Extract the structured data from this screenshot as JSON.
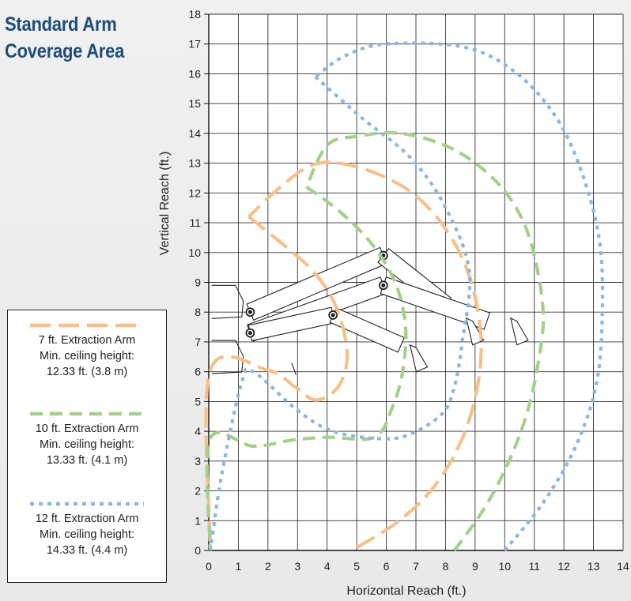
{
  "title_line1": "Standard Arm",
  "title_line2": "Coverage Area",
  "legend": [
    {
      "name": "7 ft. Extraction Arm",
      "line2": "Min. ceiling height:",
      "line3": "12.33 ft. (3.8 m)",
      "color": "#f7c08a",
      "dash": "26 10"
    },
    {
      "name": "10 ft. Extraction Arm",
      "line2": "Min. ceiling height:",
      "line3": "13.33 ft. (4.1 m)",
      "color": "#a5d08c",
      "dash": "16 9"
    },
    {
      "name": "12 ft. Extraction Arm",
      "line2": "Min. ceiling height:",
      "line3": "14.33 ft. (4.4 m)",
      "color": "#8eb7dd",
      "dash": "5 6"
    }
  ],
  "chart_data": {
    "type": "line",
    "xlabel": "Horizontal Reach (ft.)",
    "ylabel": "Vertical Reach (ft.)",
    "xlim": [
      0,
      14
    ],
    "ylim": [
      0,
      18
    ],
    "xticks": [
      0,
      1,
      2,
      3,
      4,
      5,
      6,
      7,
      8,
      9,
      10,
      11,
      12,
      13,
      14
    ],
    "yticks": [
      0,
      1,
      2,
      3,
      4,
      5,
      6,
      7,
      8,
      9,
      10,
      11,
      12,
      13,
      14,
      15,
      16,
      17,
      18
    ],
    "grid": true,
    "series": [
      {
        "name": "7 ft. Extraction Arm",
        "color": "#f7c08a",
        "segments": [
          [
            [
              5.0,
              0.1
            ],
            [
              6.3,
              0.9
            ],
            [
              7.5,
              2.0
            ],
            [
              8.4,
              3.4
            ],
            [
              8.95,
              4.9
            ],
            [
              9.2,
              6.5
            ],
            [
              9.1,
              8.0
            ],
            [
              8.7,
              9.5
            ],
            [
              8.0,
              10.8
            ],
            [
              7.0,
              11.9
            ],
            [
              5.8,
              12.6
            ],
            [
              4.4,
              13.0
            ],
            [
              3.4,
              12.9
            ],
            [
              2.3,
              12.1
            ],
            [
              1.35,
              11.2
            ]
          ],
          [
            [
              1.35,
              11.2
            ],
            [
              2.6,
              10.2
            ],
            [
              3.5,
              9.4
            ],
            [
              4.2,
              8.4
            ],
            [
              4.6,
              7.2
            ],
            [
              4.65,
              6.2
            ],
            [
              4.3,
              5.4
            ],
            [
              3.6,
              5.05
            ],
            [
              2.9,
              5.5
            ],
            [
              2.0,
              6.05
            ],
            [
              0.05,
              6.05
            ],
            [
              0.05,
              0.1
            ]
          ]
        ]
      },
      {
        "name": "10 ft. Extraction Arm",
        "color": "#a5d08c",
        "segments": [
          [
            [
              8.3,
              0.0
            ],
            [
              9.3,
              1.4
            ],
            [
              10.1,
              2.9
            ],
            [
              10.75,
              4.6
            ],
            [
              11.15,
              6.4
            ],
            [
              11.3,
              8.0
            ],
            [
              11.0,
              9.9
            ],
            [
              10.5,
              11.3
            ],
            [
              9.6,
              12.5
            ],
            [
              8.2,
              13.5
            ],
            [
              6.5,
              14.0
            ],
            [
              5.0,
              13.9
            ],
            [
              4.0,
              13.6
            ],
            [
              3.3,
              12.2
            ]
          ],
          [
            [
              3.3,
              12.2
            ],
            [
              4.4,
              11.4
            ],
            [
              5.5,
              10.3
            ],
            [
              6.3,
              9.0
            ],
            [
              6.65,
              7.5
            ],
            [
              6.55,
              6.0
            ],
            [
              6.2,
              4.8
            ],
            [
              5.6,
              3.8
            ],
            [
              4.0,
              3.8
            ],
            [
              2.8,
              3.7
            ],
            [
              1.5,
              3.5
            ],
            [
              0.05,
              3.75
            ],
            [
              0.05,
              0.0
            ]
          ]
        ]
      },
      {
        "name": "12 ft. Extraction Arm",
        "color": "#8eb7dd",
        "segments": [
          [
            [
              10.0,
              0.0
            ],
            [
              11.3,
              1.6
            ],
            [
              12.4,
              3.5
            ],
            [
              13.1,
              5.6
            ],
            [
              13.3,
              8.0
            ],
            [
              13.2,
              10.4
            ],
            [
              12.6,
              12.7
            ],
            [
              11.7,
              14.6
            ],
            [
              10.3,
              16.1
            ],
            [
              8.6,
              16.9
            ],
            [
              6.0,
              17.0
            ],
            [
              4.6,
              16.6
            ],
            [
              3.6,
              15.9
            ]
          ],
          [
            [
              3.6,
              15.9
            ],
            [
              5.2,
              14.5
            ],
            [
              6.8,
              13.2
            ],
            [
              7.95,
              11.6
            ],
            [
              8.8,
              9.4
            ],
            [
              8.55,
              6.9
            ],
            [
              8.3,
              5.5
            ],
            [
              7.9,
              4.6
            ],
            [
              6.8,
              3.9
            ],
            [
              5.8,
              3.75
            ],
            [
              4.2,
              4.0
            ],
            [
              3.0,
              4.7
            ],
            [
              1.5,
              6.0
            ],
            [
              1.1,
              5.6
            ],
            [
              0.45,
              2.6
            ],
            [
              0.05,
              0.0
            ]
          ]
        ]
      }
    ]
  }
}
